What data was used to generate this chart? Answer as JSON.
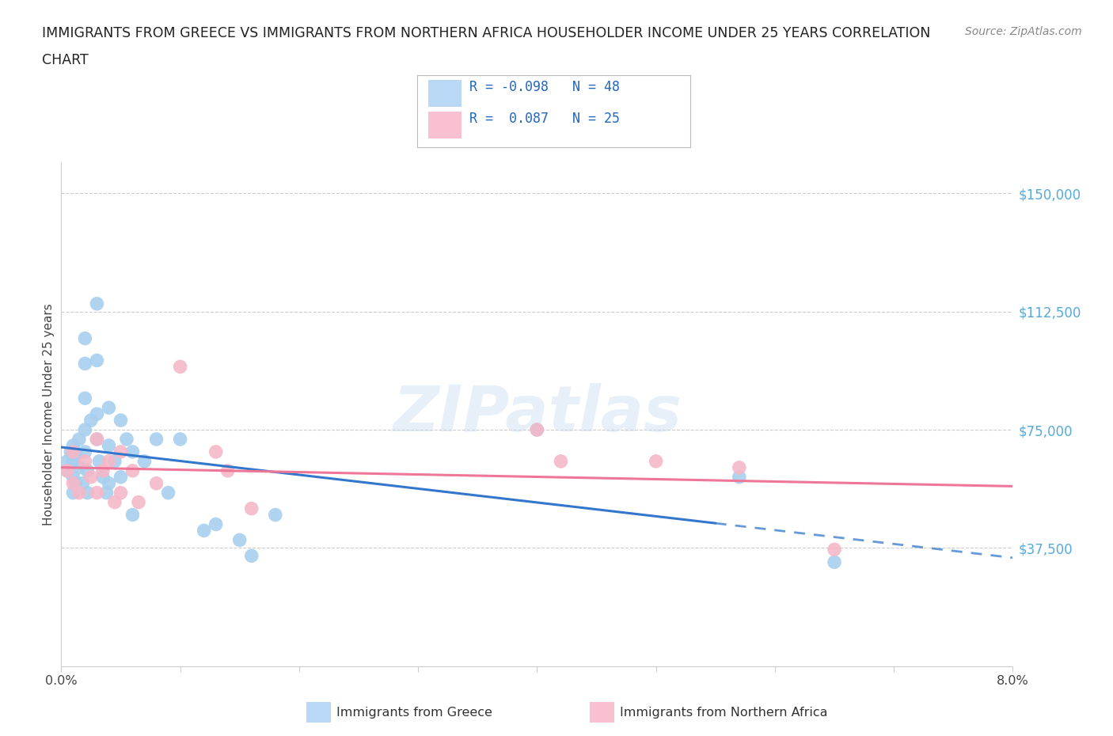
{
  "title_line1": "IMMIGRANTS FROM GREECE VS IMMIGRANTS FROM NORTHERN AFRICA HOUSEHOLDER INCOME UNDER 25 YEARS CORRELATION",
  "title_line2": "CHART",
  "source": "Source: ZipAtlas.com",
  "ylabel": "Householder Income Under 25 years",
  "watermark": "ZIPatlas",
  "xlim": [
    0.0,
    0.08
  ],
  "ylim": [
    0,
    160000
  ],
  "yticks": [
    37500,
    75000,
    112500,
    150000
  ],
  "ytick_labels": [
    "$37,500",
    "$75,000",
    "$112,500",
    "$150,000"
  ],
  "xticks": [
    0.0,
    0.01,
    0.02,
    0.03,
    0.04,
    0.05,
    0.06,
    0.07,
    0.08
  ],
  "xtick_labels": [
    "0.0%",
    "",
    "",
    "",
    "",
    "",
    "",
    "",
    "8.0%"
  ],
  "color_greece": "#A8CFEE",
  "color_n_africa": "#F5B8C8",
  "color_greece_line": "#3377CC",
  "color_n_africa_line": "#EE7799",
  "legend_box_greece": "#B8D8F5",
  "legend_box_nafrica": "#F8C0D0",
  "scatter_greece_x": [
    0.0005,
    0.0005,
    0.0008,
    0.001,
    0.001,
    0.001,
    0.001,
    0.0012,
    0.0012,
    0.0015,
    0.0015,
    0.0018,
    0.002,
    0.002,
    0.002,
    0.002,
    0.002,
    0.0022,
    0.0022,
    0.0025,
    0.003,
    0.003,
    0.003,
    0.003,
    0.0032,
    0.0035,
    0.0038,
    0.004,
    0.004,
    0.004,
    0.0045,
    0.005,
    0.005,
    0.0055,
    0.006,
    0.006,
    0.007,
    0.008,
    0.009,
    0.01,
    0.012,
    0.013,
    0.015,
    0.016,
    0.018,
    0.04,
    0.057,
    0.065
  ],
  "scatter_greece_y": [
    62000,
    65000,
    68000,
    70000,
    65000,
    60000,
    55000,
    67000,
    58000,
    72000,
    63000,
    58000,
    104000,
    96000,
    85000,
    75000,
    68000,
    62000,
    55000,
    78000,
    115000,
    97000,
    80000,
    72000,
    65000,
    60000,
    55000,
    82000,
    70000,
    58000,
    65000,
    78000,
    60000,
    72000,
    68000,
    48000,
    65000,
    72000,
    55000,
    72000,
    43000,
    45000,
    40000,
    35000,
    48000,
    75000,
    60000,
    33000
  ],
  "scatter_nafrica_x": [
    0.0005,
    0.001,
    0.001,
    0.0015,
    0.002,
    0.0025,
    0.003,
    0.003,
    0.0035,
    0.004,
    0.0045,
    0.005,
    0.005,
    0.006,
    0.0065,
    0.008,
    0.01,
    0.013,
    0.014,
    0.016,
    0.04,
    0.042,
    0.05,
    0.057,
    0.065
  ],
  "scatter_nafrica_y": [
    62000,
    68000,
    58000,
    55000,
    65000,
    60000,
    72000,
    55000,
    62000,
    65000,
    52000,
    68000,
    55000,
    62000,
    52000,
    58000,
    95000,
    68000,
    62000,
    50000,
    75000,
    65000,
    65000,
    63000,
    37000
  ],
  "background_color": "#FFFFFF",
  "grid_color": "#CCCCCC",
  "axis_color": "#CCCCCC"
}
